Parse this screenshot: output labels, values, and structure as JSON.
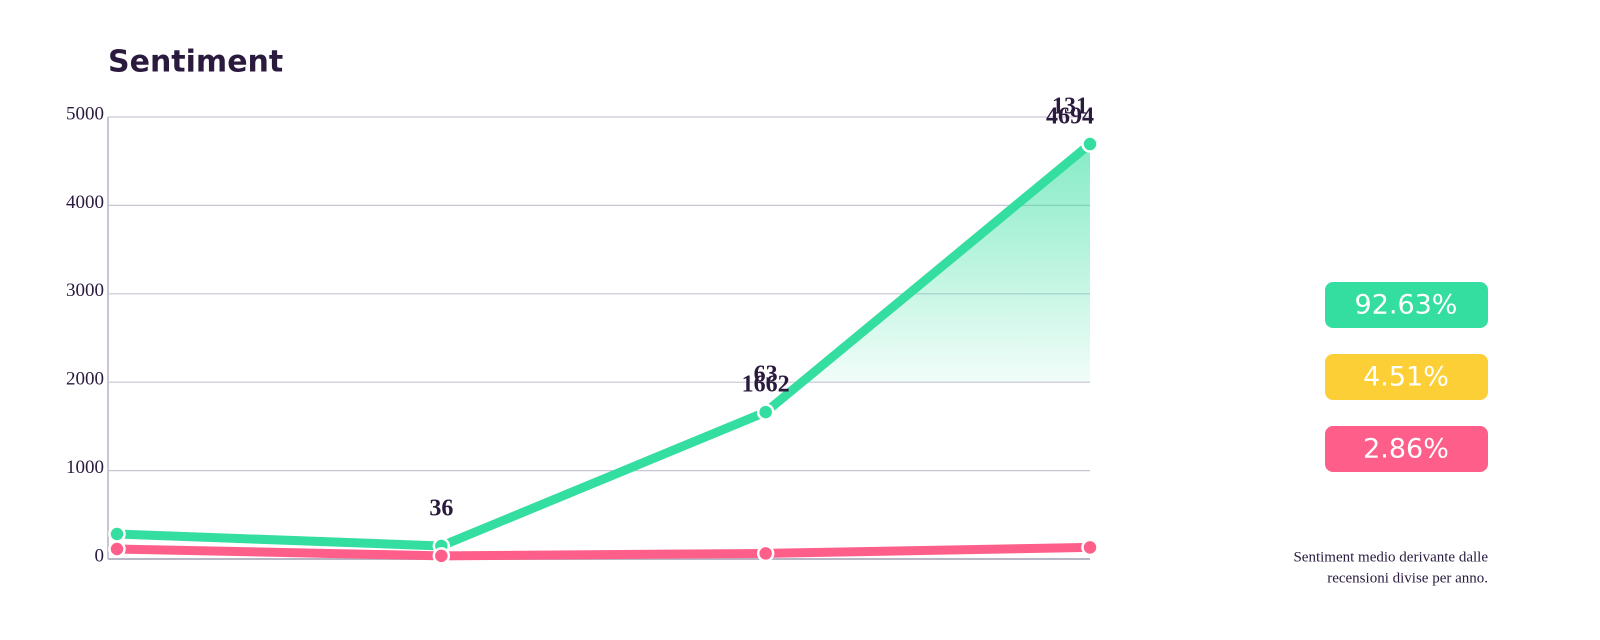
{
  "chart_data": {
    "type": "line",
    "title": "Sentiment",
    "categories": [
      null,
      null,
      null,
      null
    ],
    "ylim": [
      0,
      5000
    ],
    "yticks": [
      0,
      1000,
      2000,
      3000,
      4000,
      5000
    ],
    "grid": true,
    "series": [
      {
        "color": "#34dea0",
        "values": [
          283,
          147,
          1662,
          4694
        ],
        "value_labels": [
          null,
          null,
          "1662",
          "4694"
        ]
      },
      {
        "color": "#fd5f8a",
        "values": [
          113,
          36,
          63,
          131
        ],
        "value_labels": [
          null,
          "36",
          "63",
          "131"
        ]
      }
    ]
  },
  "badges": [
    {
      "label": "92.63%",
      "color": "#34dea0"
    },
    {
      "label": "4.51%",
      "color": "#fdcf36"
    },
    {
      "label": "2.86%",
      "color": "#fd5f8a"
    }
  ],
  "note": [
    "Sentiment medio derivante dalle",
    "recensioni divise per anno."
  ]
}
